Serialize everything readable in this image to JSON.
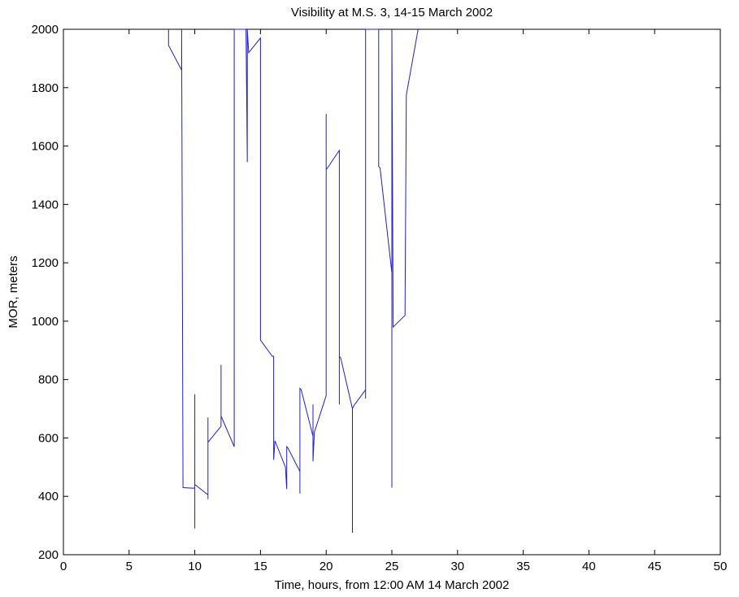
{
  "chart_data": {
    "type": "line",
    "title": "Visibility at M.S. 3, 14-15 March 2002",
    "xlabel": "Time, hours, from 12:00 AM 14 March 2002",
    "ylabel": "MOR, meters",
    "xlim": [
      0,
      50
    ],
    "ylim": [
      200,
      2000
    ],
    "x_ticks": [
      0,
      5,
      10,
      15,
      20,
      25,
      30,
      35,
      40,
      45,
      50
    ],
    "y_ticks": [
      200,
      400,
      600,
      800,
      1000,
      1200,
      1400,
      1600,
      1800,
      2000
    ],
    "grid": false,
    "line_color": "#1f1fd0",
    "series": [
      {
        "x": [
          8.0,
          8.0,
          9.0,
          9.0,
          9.1,
          9.9,
          10.0,
          10.0,
          10.0,
          10.0,
          10.1,
          11.0,
          11.0,
          11.0,
          11.0,
          12.0,
          12.0,
          12.0,
          13.0,
          13.0,
          13.0,
          13.9,
          14.0,
          14.0,
          14.1,
          15.0,
          15.0,
          15.9,
          16.0,
          16.0,
          16.1,
          16.9,
          17.0,
          17.0,
          17.1,
          18.0,
          18.0,
          18.0,
          18.1,
          19.0,
          19.0,
          19.0,
          19.1,
          20.0,
          20.0,
          20.0,
          20.1,
          21.0,
          21.0,
          21.0,
          21.1,
          22.0,
          22.0,
          22.0,
          22.1,
          23.0,
          23.0,
          23.0,
          23.1,
          24.0,
          24.0,
          24.1,
          25.0,
          25.0,
          25.0,
          25.1,
          26.0,
          26.0,
          26.1,
          27.0
        ],
        "y": [
          2000,
          1945,
          1860,
          2000,
          430,
          428,
          430,
          750,
          290,
          440,
          437,
          405,
          670,
          390,
          585,
          640,
          850,
          675,
          570,
          2000,
          2000,
          2000,
          1545,
          2000,
          1920,
          1970,
          935,
          880,
          880,
          525,
          590,
          500,
          425,
          570,
          565,
          485,
          410,
          770,
          765,
          605,
          715,
          520,
          620,
          745,
          1710,
          1520,
          1525,
          1585,
          715,
          880,
          875,
          700,
          275,
          700,
          710,
          765,
          735,
          2000,
          2000,
          2000,
          1530,
          1525,
          1165,
          430,
          2000,
          980,
          1020,
          1025,
          1775,
          2000
        ]
      }
    ]
  }
}
